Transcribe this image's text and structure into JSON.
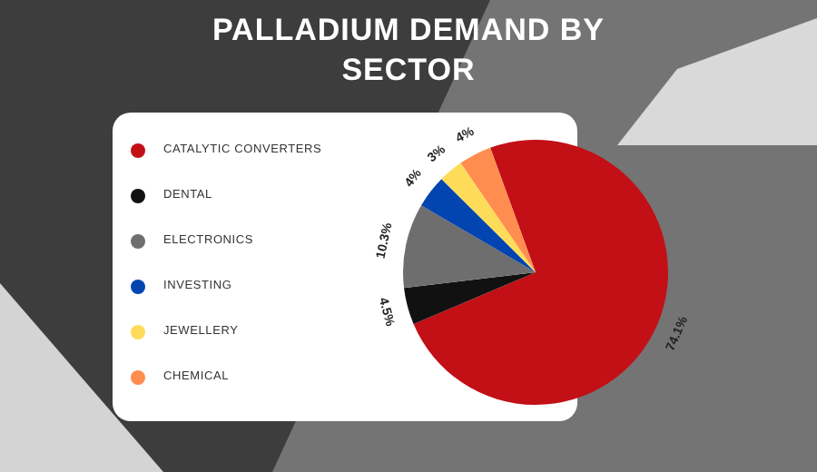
{
  "chart_data": {
    "type": "pie",
    "title": "PALLADIUM DEMAND BY SECTOR",
    "categories": [
      "CATALYTIC CONVERTERS",
      "DENTAL",
      "ELECTRONICS",
      "INVESTING",
      "JEWELLERY",
      "CHEMICAL"
    ],
    "values": [
      74.1,
      4.5,
      10.3,
      4,
      3,
      4
    ],
    "colors": [
      "#c30f16",
      "#111111",
      "#6e6e6e",
      "#0345b0",
      "#fedc5a",
      "#fe8d4f"
    ],
    "value_labels": [
      "74.1%",
      "4.5%",
      "10.3%",
      "4%",
      "3%",
      "4%"
    ],
    "legend": "left"
  }
}
